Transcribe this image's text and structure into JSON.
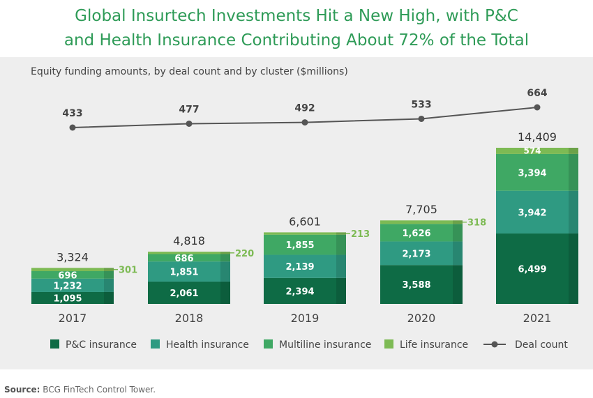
{
  "title_line1": "Global Insurtech Investments Hit a New High, with P&C",
  "title_line2": "and Health Insurance Contributing About 72% of the Total",
  "subtitle": "Equity funding amounts, by deal count and by cluster ($millions)",
  "source_label": "Source:",
  "source_text": "BCG FinTech Control Tower.",
  "colors": {
    "pc": "#0e6b45",
    "health": "#2f9a82",
    "multiline": "#3fa864",
    "life": "#7dba54",
    "line": "#555555"
  },
  "chart_data": {
    "type": "bar",
    "stacked": true,
    "categories": [
      "2017",
      "2018",
      "2019",
      "2020",
      "2021"
    ],
    "series": [
      {
        "name": "P&C insurance",
        "key": "pc",
        "values": [
          1095,
          2061,
          2394,
          3588,
          6499
        ],
        "labels": [
          "1,095",
          "2,061",
          "2,394",
          "3,588",
          "6,499"
        ]
      },
      {
        "name": "Health insurance",
        "key": "health",
        "values": [
          1232,
          1851,
          2139,
          2173,
          3942
        ],
        "labels": [
          "1,232",
          "1,851",
          "2,139",
          "2,173",
          "3,942"
        ]
      },
      {
        "name": "Multiline insurance",
        "key": "multiline",
        "values": [
          696,
          686,
          1855,
          1626,
          3394
        ],
        "labels": [
          "696",
          "686",
          "1,855",
          "1,626",
          "3,394"
        ]
      },
      {
        "name": "Life insurance",
        "key": "life",
        "values": [
          301,
          220,
          213,
          318,
          574
        ],
        "labels": [
          "301",
          "220",
          "213",
          "318",
          "574"
        ]
      }
    ],
    "totals": [
      "3,324",
      "4,818",
      "6,601",
      "7,705",
      "14,409"
    ],
    "deal_count": {
      "name": "Deal count",
      "values": [
        433,
        477,
        492,
        533,
        664
      ]
    }
  }
}
